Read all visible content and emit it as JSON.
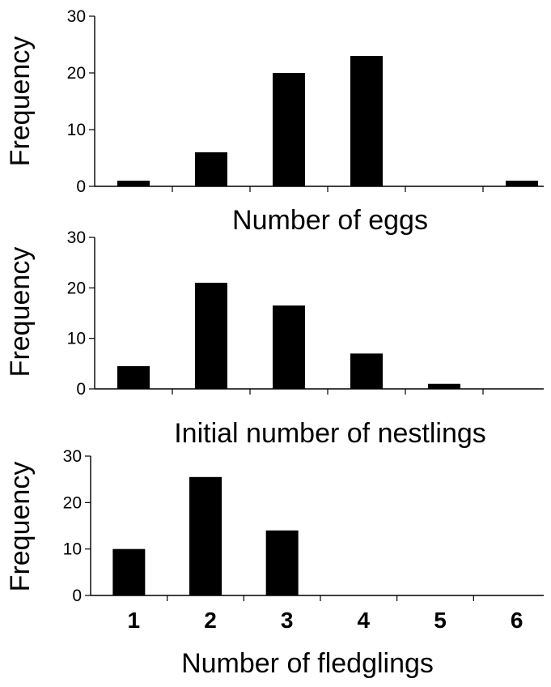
{
  "chart_data": [
    {
      "type": "bar",
      "categories": [
        "1",
        "2",
        "3",
        "4",
        "5",
        "6"
      ],
      "values": [
        1,
        6,
        20,
        23,
        0,
        1
      ],
      "xlabel": "Number of eggs",
      "ylabel": "Frequency",
      "ylim": [
        0,
        30
      ],
      "yticks": [
        "0",
        "10",
        "20",
        "30"
      ],
      "show_category_labels": false,
      "grid": false
    },
    {
      "type": "bar",
      "categories": [
        "1",
        "2",
        "3",
        "4",
        "5",
        "6"
      ],
      "values": [
        4.5,
        21,
        16.5,
        7,
        1,
        0
      ],
      "xlabel": "Initial number of nestlings",
      "ylabel": "Frequency",
      "ylim": [
        0,
        30
      ],
      "yticks": [
        "0",
        "10",
        "20",
        "30"
      ],
      "show_category_labels": false,
      "grid": false
    },
    {
      "type": "bar",
      "categories": [
        "1",
        "2",
        "3",
        "4",
        "5",
        "6"
      ],
      "values": [
        10,
        25.5,
        14,
        0,
        0,
        0
      ],
      "xlabel": "Number of fledglings",
      "ylabel": "Frequency",
      "ylim": [
        0,
        30
      ],
      "yticks": [
        "0",
        "10",
        "20",
        "30"
      ],
      "show_category_labels": true,
      "grid": false
    }
  ]
}
